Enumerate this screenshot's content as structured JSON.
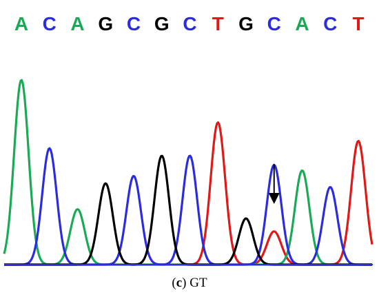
{
  "colors": {
    "A": "#1aaa55",
    "C": "#2b2bdf",
    "G": "#000000",
    "T": "#e01818",
    "background": "#ffffff"
  },
  "chart_data": {
    "type": "line",
    "title": "",
    "xlabel": "",
    "ylabel": "",
    "grid": false,
    "legend": "none",
    "ylim": [
      0,
      1
    ],
    "sequence": [
      "A",
      "C",
      "A",
      "G",
      "C",
      "G",
      "C",
      "T",
      "G",
      "C",
      "A",
      "C",
      "T"
    ],
    "peaks": [
      {
        "base": "A",
        "height": 1.0
      },
      {
        "base": "C",
        "height": 0.63
      },
      {
        "base": "A",
        "height": 0.3
      },
      {
        "base": "G",
        "height": 0.44
      },
      {
        "base": "C",
        "height": 0.48
      },
      {
        "base": "G",
        "height": 0.59
      },
      {
        "base": "C",
        "height": 0.59
      },
      {
        "base": "T",
        "height": 0.77
      },
      {
        "base": "G",
        "height": 0.25
      },
      {
        "base": "C",
        "height": 0.54
      },
      {
        "base": "A",
        "height": 0.51
      },
      {
        "base": "C",
        "height": 0.42
      },
      {
        "base": "T",
        "height": 0.67
      }
    ],
    "secondary_peaks": [
      {
        "at_position": 9,
        "base": "T",
        "height": 0.18
      }
    ],
    "annotation": {
      "type": "arrow",
      "at_position": 9,
      "meaning": "heterozygous site"
    }
  },
  "caption": {
    "label": "c",
    "text": "GT"
  }
}
